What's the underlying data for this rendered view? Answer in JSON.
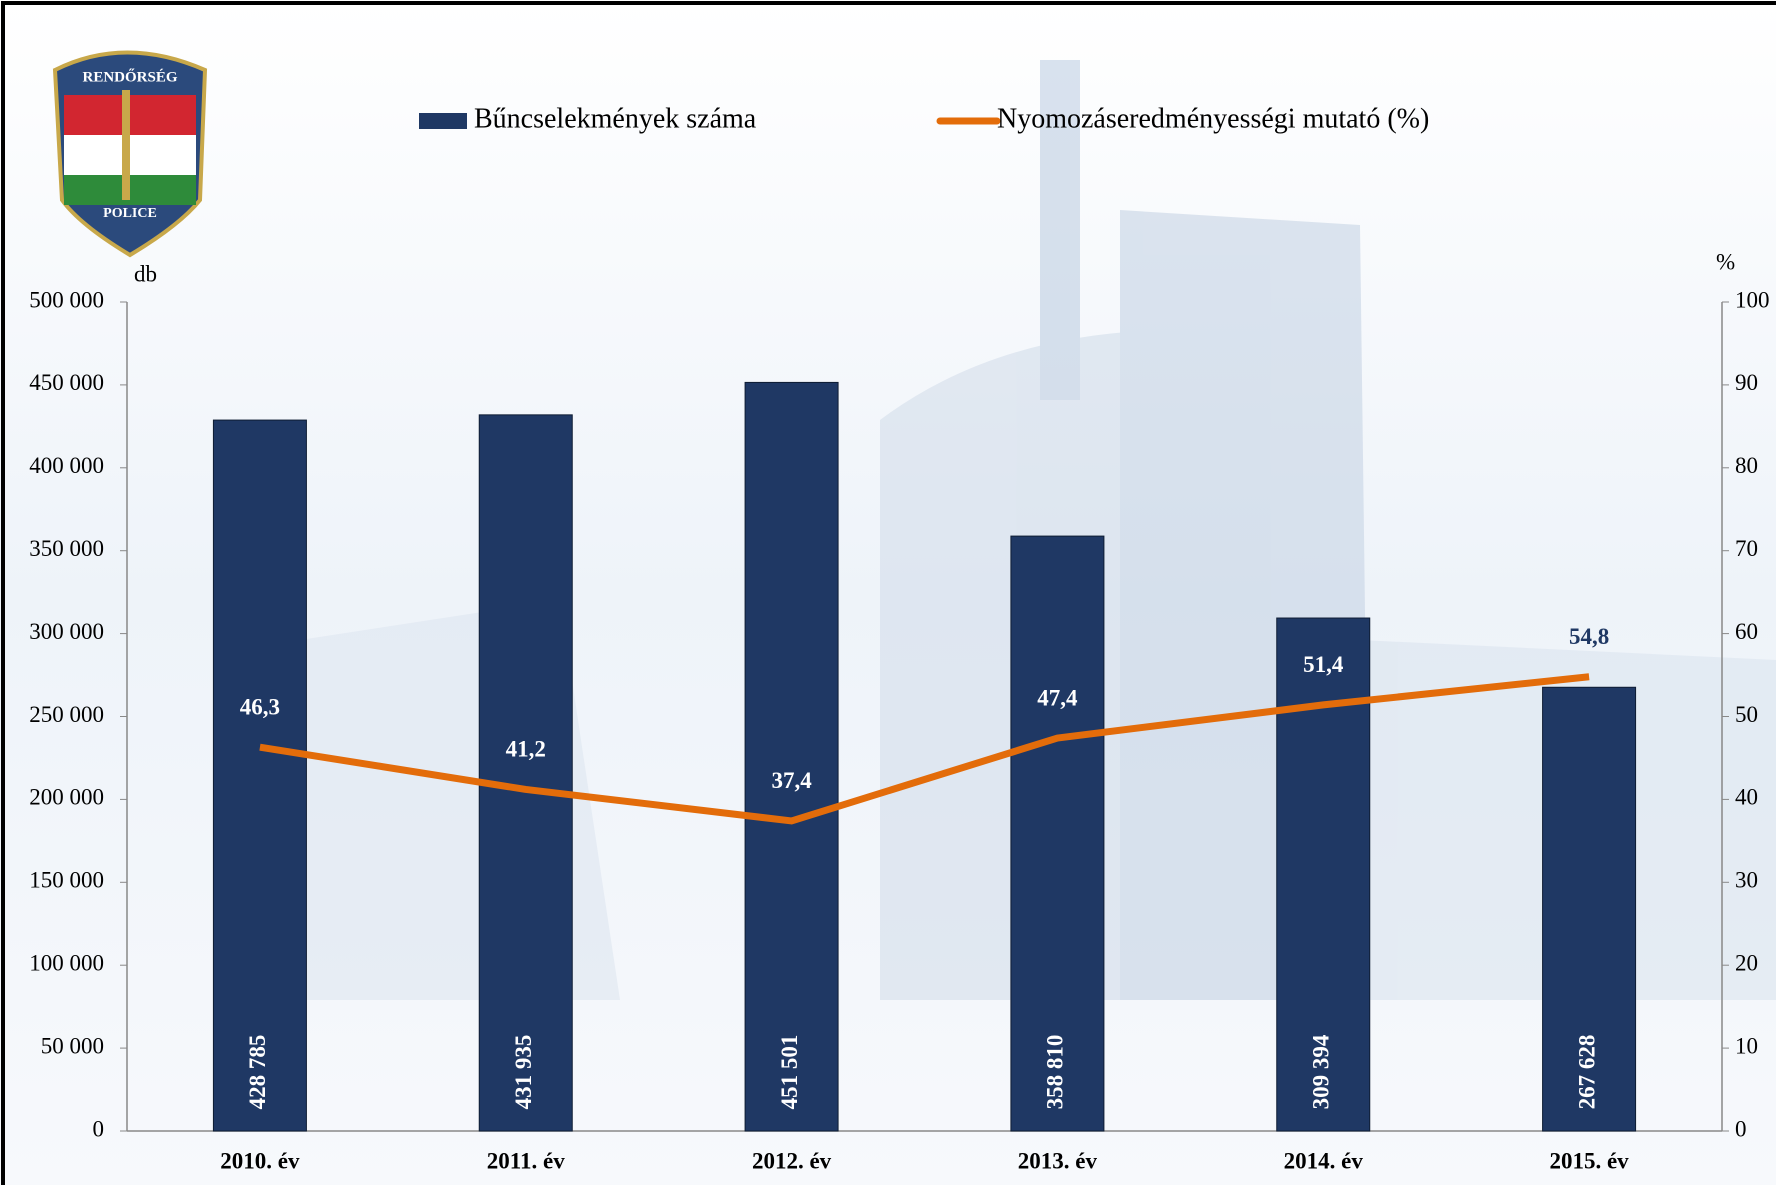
{
  "chart_data": {
    "type": "bar-line",
    "annotations": [
      "RENDŐRSÉG",
      "POLICE"
    ],
    "y_label": "db",
    "y2_label": "%",
    "categories": [
      "2010. év",
      "2011. év",
      "2012. év",
      "2013. év",
      "2014. év",
      "2015. év"
    ],
    "series": [
      {
        "name": "Bűncselekmények száma",
        "type": "bar",
        "color": "#1f3864",
        "values": [
          428785,
          431935,
          451501,
          358810,
          309394,
          267628
        ],
        "value_labels": [
          "428 785",
          "431 935",
          "451 501",
          "358 810",
          "309 394",
          "267 628"
        ]
      },
      {
        "name": "Nyomozáseredményességi mutató (%)",
        "type": "line",
        "axis": "y2",
        "color": "#e36c0a",
        "values": [
          46.3,
          41.2,
          37.4,
          47.4,
          51.4,
          54.8
        ],
        "value_labels": [
          "46,3",
          "41,2",
          "37,4",
          "47,4",
          "51,4",
          "54,8"
        ]
      }
    ],
    "ylim": [
      0,
      500000
    ],
    "yticks": [
      0,
      {
        "value": 50000,
        "label": "50 000"
      },
      {
        "value": 100000,
        "label": "100 000"
      },
      {
        "value": 150000,
        "label": "150 000"
      },
      {
        "value": 200000,
        "label": "200 000"
      },
      {
        "value": 250000,
        "label": "250 000"
      },
      {
        "value": 300000,
        "label": "300 000"
      },
      {
        "value": 350000,
        "label": "350 000"
      },
      {
        "value": 400000,
        "label": "400 000"
      },
      {
        "value": 450000,
        "label": "450 000"
      },
      {
        "value": 500000,
        "label": "500 000"
      }
    ],
    "y2lim": [
      0,
      100
    ],
    "y2ticks": [
      0,
      10,
      20,
      30,
      40,
      50,
      60,
      70,
      80,
      90,
      100
    ],
    "grid": false
  }
}
